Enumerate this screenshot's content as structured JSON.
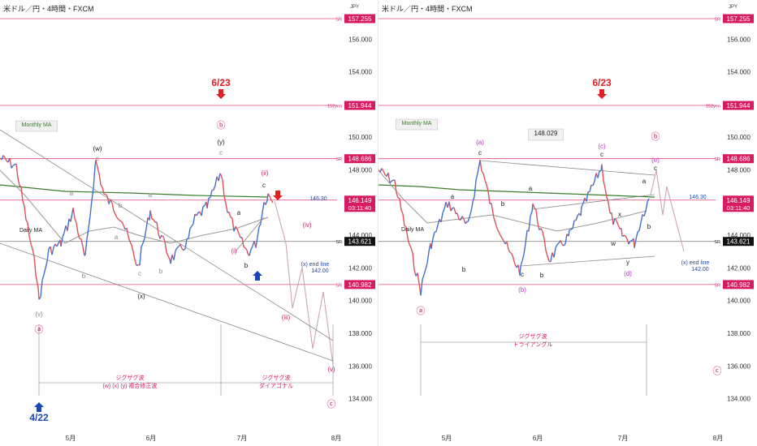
{
  "chart_data": [
    {
      "type": "line",
      "title": "米ドル／円・4時間・FXCM",
      "currency": "JPY",
      "ylim": [
        133,
        158
      ],
      "y_ticks": [
        "156.000",
        "154.000",
        "152.000",
        "150.000",
        "148.000",
        "146.000",
        "144.000",
        "142.000",
        "140.000",
        "138.000",
        "136.000",
        "134.000"
      ],
      "x_ticks": [
        "5月",
        "6月",
        "7月",
        "8月"
      ],
      "levels": [
        {
          "label": "SR",
          "value": "157.255",
          "color": "#d81b60"
        },
        {
          "label": "152yen",
          "value": "151.944",
          "color": "#d81b60"
        },
        {
          "label": "SR",
          "value": "148.686",
          "color": "#d81b60"
        },
        {
          "label": "",
          "value": "146.149",
          "sub": "03:11:40",
          "color": "#d81b60"
        },
        {
          "label": "SR",
          "value": "143.621",
          "color": "#111111"
        },
        {
          "label": "SR",
          "value": "140.982",
          "color": "#d81b60"
        }
      ],
      "annotations": [
        "6/23",
        "4/22",
        "Monthly MA",
        "Daily MA",
        "146.30",
        "(x) end line",
        "142.00",
        "ジグザグ波",
        "(w) (x) (y) 複合修正波",
        "ジグザグ波",
        "ダイアゴナル"
      ],
      "wave_labels": [
        "(w)",
        "(x)",
        "(y)",
        "(v)",
        "(ii)",
        "(iii)",
        "(iv)",
        "(v)",
        "(i)",
        "a",
        "b",
        "c",
        "a",
        "b",
        "c",
        "ⓐ",
        "ⓑ",
        "ⓒ"
      ]
    },
    {
      "type": "line",
      "title": "米ドル／円・4時間・FXCM",
      "currency": "JPY",
      "ylim": [
        133,
        158
      ],
      "y_ticks": [
        "156.000",
        "154.000",
        "152.000",
        "150.000",
        "148.000",
        "146.000",
        "144.000",
        "142.000",
        "140.000",
        "138.000",
        "136.000",
        "134.000"
      ],
      "x_ticks": [
        "5月",
        "6月",
        "7月",
        "8月"
      ],
      "levels": [
        {
          "label": "SR",
          "value": "157.255",
          "color": "#d81b60"
        },
        {
          "label": "152yen",
          "value": "151.944",
          "color": "#d81b60"
        },
        {
          "label": "SR",
          "value": "148.686",
          "color": "#d81b60"
        },
        {
          "label": "",
          "value": "146.149",
          "sub": "03:11:40",
          "color": "#d81b60"
        },
        {
          "label": "SR",
          "value": "143.621",
          "color": "#111111"
        },
        {
          "label": "SR",
          "value": "140.982",
          "color": "#d81b60"
        }
      ],
      "annotations": [
        "6/23",
        "148.029",
        "Monthly MA",
        "Daily MA",
        "146.30",
        "(x) end line",
        "142.00",
        "ジグザグ波",
        "トライアングル"
      ],
      "wave_labels": [
        "(a)",
        "(b)",
        "(c)",
        "(d)",
        "(e)",
        "a",
        "b",
        "c",
        "x",
        "w",
        "y",
        "ⓐ",
        "ⓑ",
        "ⓒ"
      ]
    }
  ]
}
